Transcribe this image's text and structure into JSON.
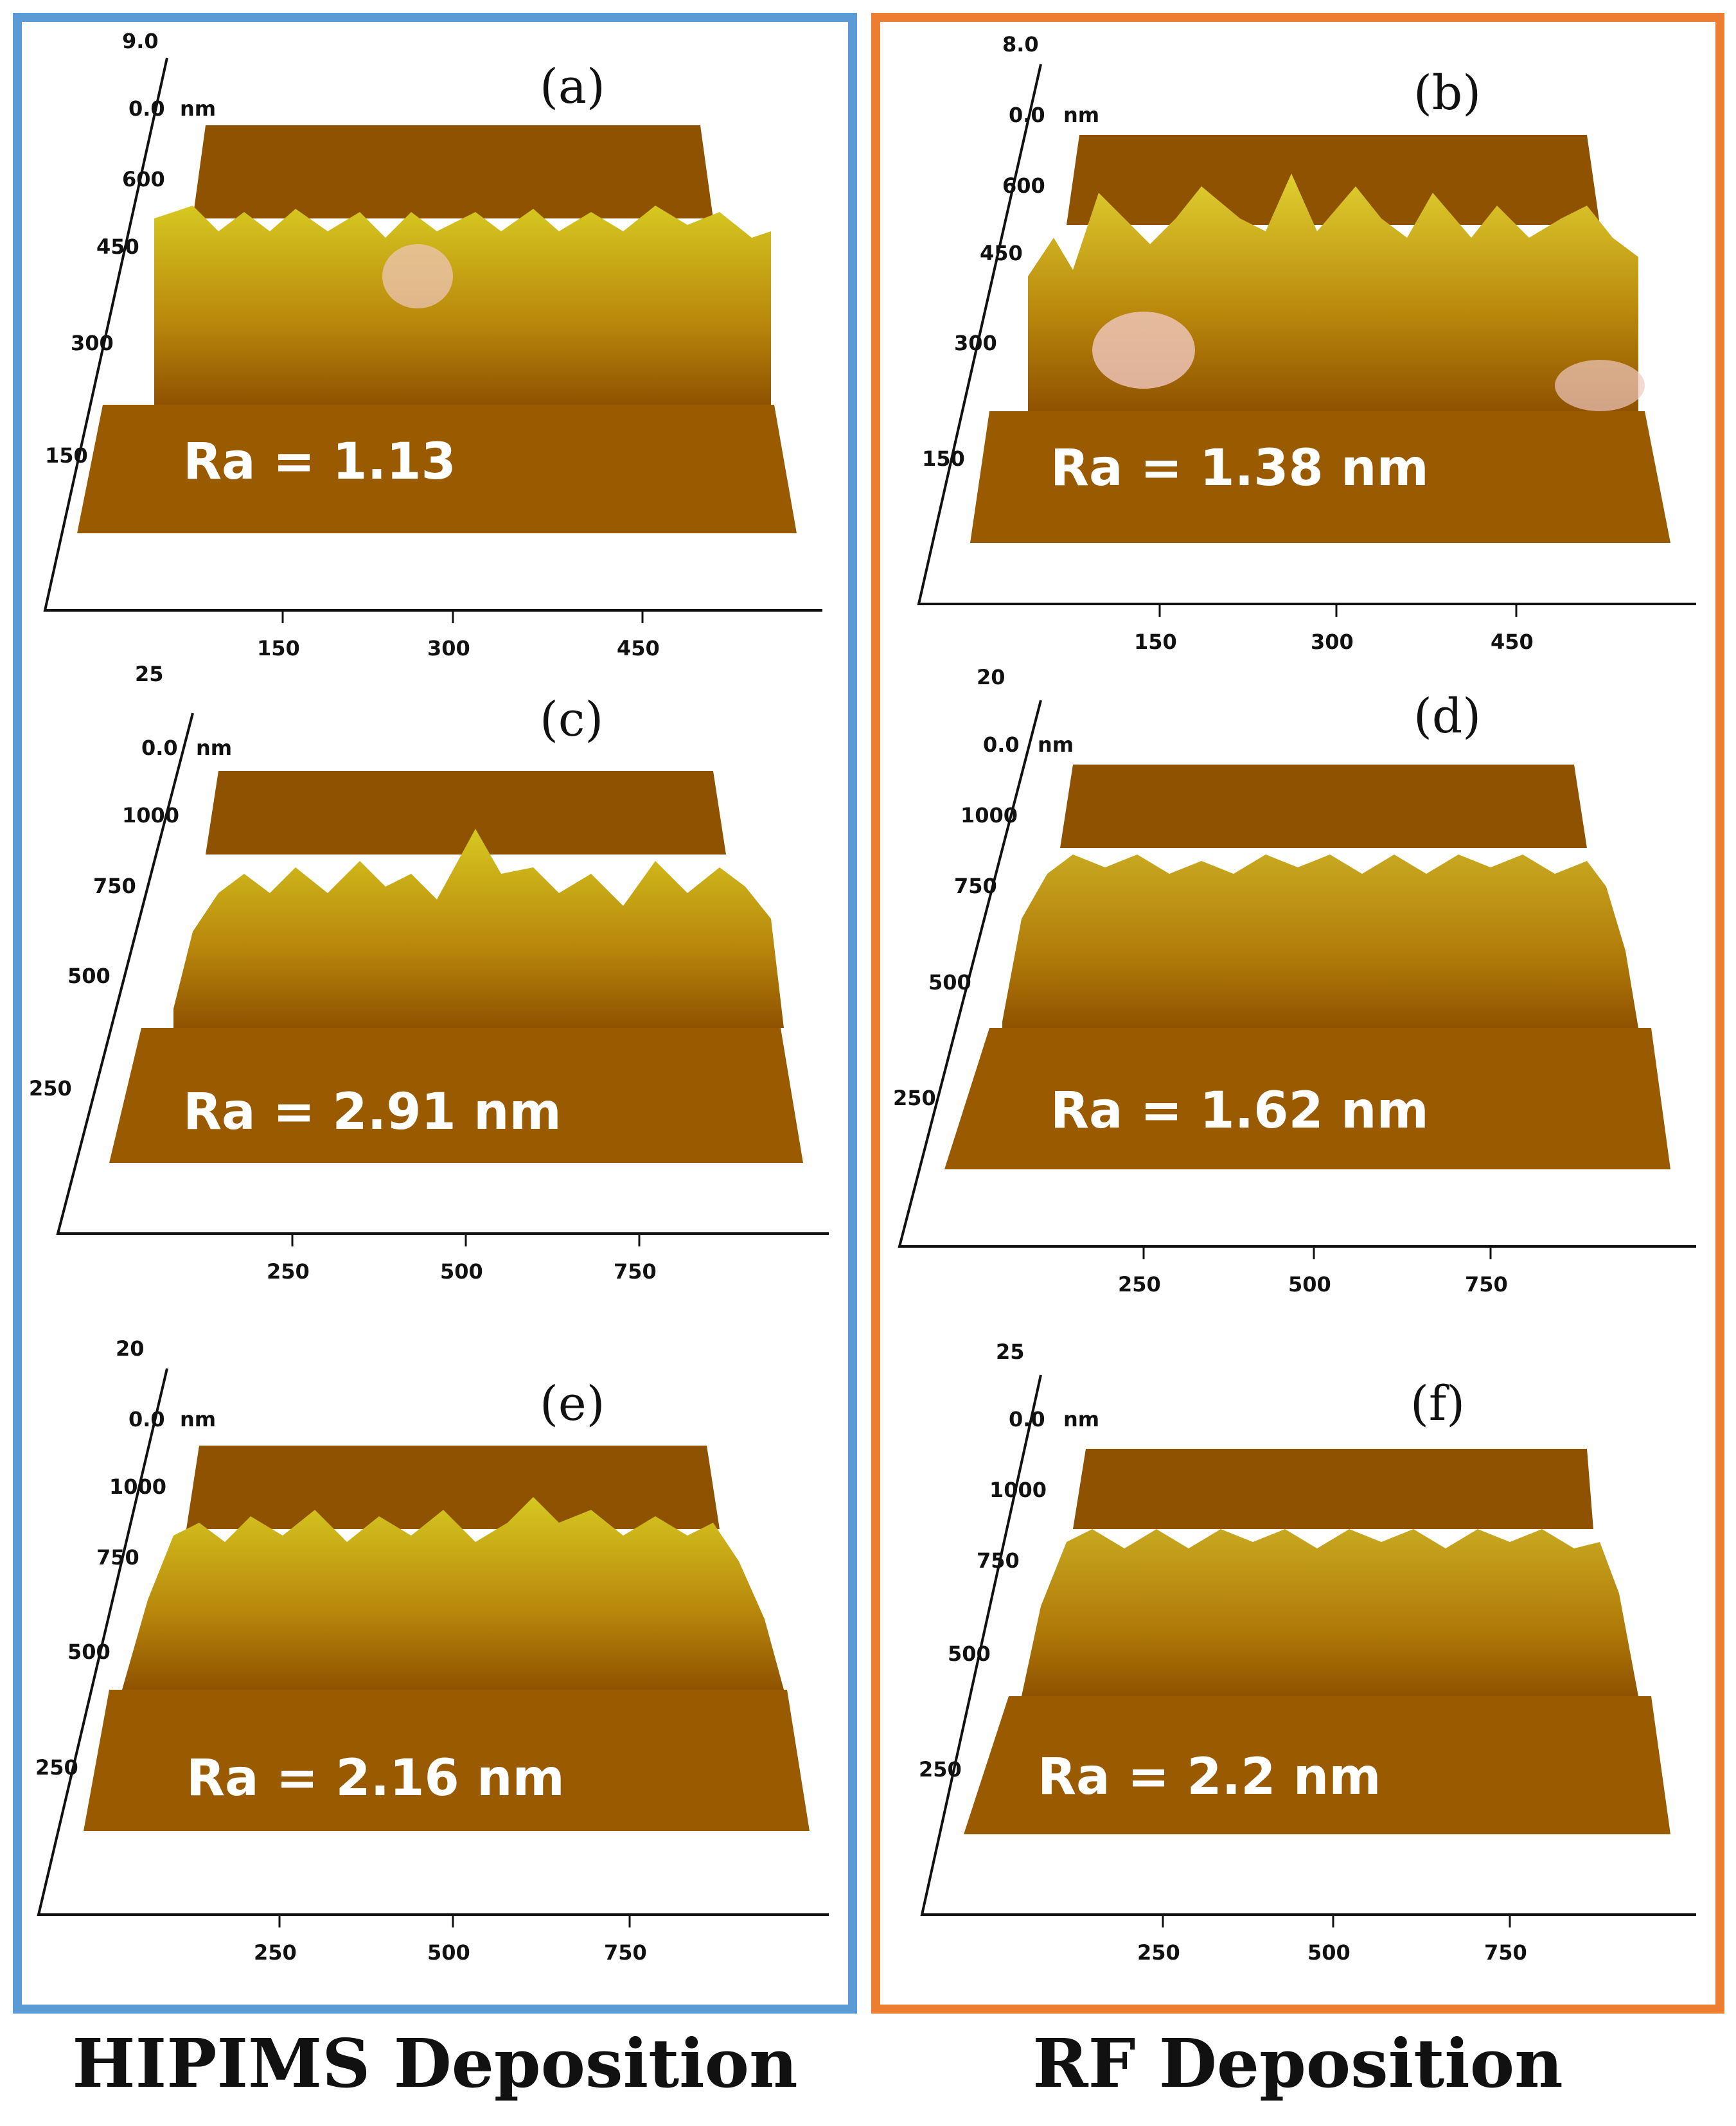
{
  "groups": {
    "left": {
      "caption": "HIPIMS Deposition",
      "border_color": "#5b9bd5"
    },
    "right": {
      "caption": "RF Deposition",
      "border_color": "#ed7d31"
    }
  },
  "colors": {
    "surface_dark": "#8f5200",
    "surface_mid": "#a86c08",
    "peak": "#d6c820",
    "peak_highlight": "#f0c8c0"
  },
  "panels": [
    {
      "id": "a",
      "letter": "(a)",
      "ra": "Ra = 1.13",
      "z_max": "9.0",
      "z_zero": "0.0",
      "z_unit": "nm",
      "y_ticks": [
        "600",
        "450",
        "300",
        "150"
      ],
      "x_ticks": [
        "150",
        "300",
        "450"
      ],
      "roughness_nm": 1.13
    },
    {
      "id": "b",
      "letter": "(b)",
      "ra": "Ra = 1.38 nm",
      "z_max": "8.0",
      "z_zero": "0.0",
      "z_unit": "nm",
      "y_ticks": [
        "600",
        "450",
        "300",
        "150"
      ],
      "x_ticks": [
        "150",
        "300",
        "450"
      ],
      "roughness_nm": 1.38
    },
    {
      "id": "c",
      "letter": "(c)",
      "ra": "Ra = 2.91 nm",
      "z_max": "25",
      "z_zero": "0.0",
      "z_unit": "nm",
      "y_ticks": [
        "1000",
        "750",
        "500",
        "250"
      ],
      "x_ticks": [
        "250",
        "500",
        "750"
      ],
      "roughness_nm": 2.91
    },
    {
      "id": "d",
      "letter": "(d)",
      "ra": "Ra = 1.62 nm",
      "z_max": "20",
      "z_zero": "0.0",
      "z_unit": "nm",
      "y_ticks": [
        "1000",
        "750",
        "500",
        "250"
      ],
      "x_ticks": [
        "250",
        "500",
        "750"
      ],
      "roughness_nm": 1.62
    },
    {
      "id": "e",
      "letter": "(e)",
      "ra": "Ra = 2.16 nm",
      "z_max": "20",
      "z_zero": "0.0",
      "z_unit": "nm",
      "y_ticks": [
        "1000",
        "750",
        "500",
        "250"
      ],
      "x_ticks": [
        "250",
        "500",
        "750"
      ],
      "roughness_nm": 2.16
    },
    {
      "id": "f",
      "letter": "(f)",
      "ra": "Ra = 2.2 nm",
      "z_max": "25",
      "z_zero": "0.0",
      "z_unit": "nm",
      "y_ticks": [
        "1000",
        "750",
        "500",
        "250"
      ],
      "x_ticks": [
        "250",
        "500",
        "750"
      ],
      "roughness_nm": 2.2
    }
  ]
}
